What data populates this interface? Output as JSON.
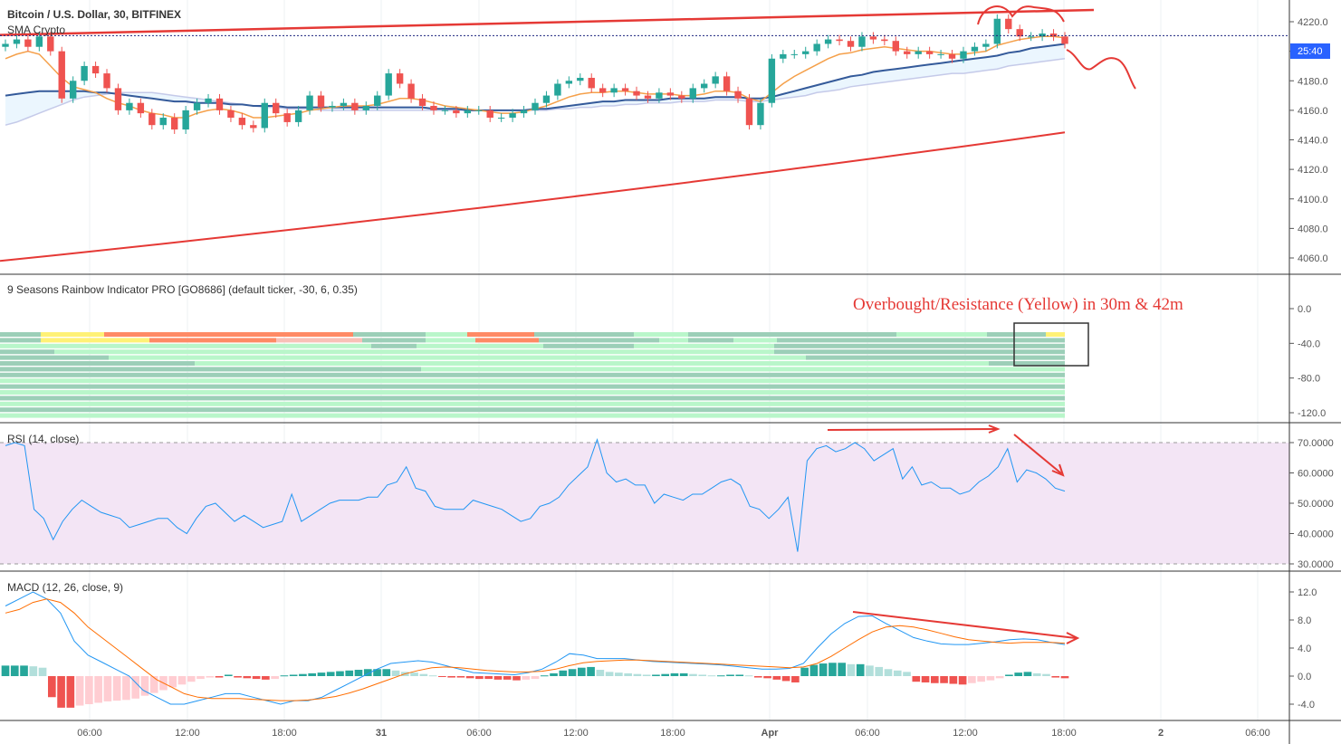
{
  "main_panel": {
    "title": "Bitcoin / U.S. Dollar, 30, BITFINEX",
    "indicator": "SMA Crypto",
    "current_price_label": "25:40",
    "y_ticks": [
      "4220.0",
      "4200.0",
      "4180.0",
      "4160.0",
      "4140.0",
      "4120.0",
      "4100.0",
      "4080.0",
      "4060.0"
    ]
  },
  "rainbow_panel": {
    "title": "9 Seasons Rainbow Indicator PRO [GO8686] (default ticker, -30, 6, 0.35)",
    "annotation": "Overbought/Resistance (Yellow) in 30m & 42m",
    "y_ticks": [
      "0.0",
      "-40.0",
      "-80.0",
      "-120.0"
    ]
  },
  "rsi_panel": {
    "title": "RSI (14, close)",
    "y_ticks": [
      "70.0000",
      "60.0000",
      "50.0000",
      "40.0000",
      "30.0000"
    ]
  },
  "macd_panel": {
    "title": "MACD (12, 26, close, 9)",
    "y_ticks": [
      "12.0",
      "8.0",
      "4.0",
      "0.0",
      "-4.0"
    ]
  },
  "time_axis": {
    "labels": [
      "06:00",
      "12:00",
      "18:00",
      "31",
      "06:00",
      "12:00",
      "18:00",
      "Apr",
      "06:00",
      "12:00",
      "18:00",
      "2",
      "06:00"
    ]
  },
  "colors": {
    "up": "#26a69a",
    "down": "#ef5350",
    "annotation": "#e53935",
    "rsi_band": "#f3e5f5"
  },
  "chart_data": [
    {
      "type": "candlestick",
      "title": "Bitcoin / U.S. Dollar, 30, BITFINEX",
      "ylim": [
        4050,
        4232
      ],
      "closes": [
        4205,
        4208,
        4203,
        4210,
        4200,
        4168,
        4180,
        4190,
        4185,
        4175,
        4160,
        4165,
        4158,
        4150,
        4155,
        4147,
        4160,
        4165,
        4168,
        4160,
        4155,
        4150,
        4148,
        4165,
        4158,
        4152,
        4160,
        4170,
        4162,
        4163,
        4165,
        4160,
        4163,
        4170,
        4185,
        4178,
        4168,
        4163,
        4160,
        4160,
        4158,
        4160,
        4160,
        4155,
        4155,
        4158,
        4160,
        4165,
        4170,
        4178,
        4180,
        4182,
        4175,
        4172,
        4175,
        4173,
        4170,
        4168,
        4172,
        4170,
        4168,
        4175,
        4178,
        4183,
        4173,
        4168,
        4150,
        4165,
        4195,
        4198,
        4198,
        4200,
        4205,
        4208,
        4207,
        4203,
        4210,
        4208,
        4207,
        4200,
        4198,
        4200,
        4198,
        4198,
        4195,
        4200,
        4203,
        4205,
        4222,
        4215,
        4210,
        4210,
        4212,
        4210,
        4205
      ],
      "sma_fast": [
        4195,
        4198,
        4200,
        4198,
        4190,
        4182,
        4176,
        4174,
        4172,
        4168,
        4165,
        4163,
        4160,
        4158,
        4157,
        4155,
        4155,
        4158,
        4160,
        4161,
        4160,
        4158,
        4155,
        4155,
        4156,
        4157,
        4158,
        4160,
        4161,
        4162,
        4163,
        4163,
        4163,
        4164,
        4166,
        4168,
        4168,
        4167,
        4165,
        4163,
        4162,
        4161,
        4160,
        4159,
        4158,
        4158,
        4159,
        4161,
        4163,
        4166,
        4169,
        4171,
        4172,
        4172,
        4173,
        4173,
        4172,
        4171,
        4171,
        4171,
        4170,
        4170,
        4171,
        4173,
        4173,
        4172,
        4168,
        4166,
        4172,
        4178,
        4183,
        4187,
        4191,
        4195,
        4198,
        4199,
        4201,
        4202,
        4203,
        4202,
        4201,
        4200,
        4200,
        4199,
        4198,
        4198,
        4199,
        4200,
        4204,
        4206,
        4208,
        4209,
        4210,
        4210,
        4209
      ],
      "sma_mid": [
        4170,
        4171,
        4172,
        4173,
        4173,
        4173,
        4173,
        4173,
        4172,
        4172,
        4171,
        4170,
        4169,
        4168,
        4167,
        4166,
        4166,
        4165,
        4165,
        4165,
        4164,
        4164,
        4163,
        4163,
        4163,
        4162,
        4162,
        4162,
        4162,
        4162,
        4162,
        4162,
        4162,
        4162,
        4162,
        4162,
        4162,
        4162,
        4161,
        4161,
        4161,
        4160,
        4160,
        4160,
        4160,
        4160,
        4160,
        4161,
        4161,
        4162,
        4163,
        4164,
        4165,
        4166,
        4166,
        4167,
        4167,
        4167,
        4167,
        4168,
        4168,
        4168,
        4168,
        4169,
        4169,
        4169,
        4168,
        4168,
        4169,
        4171,
        4173,
        4175,
        4177,
        4179,
        4181,
        4183,
        4184,
        4186,
        4187,
        4188,
        4189,
        4190,
        4191,
        4192,
        4193,
        4194,
        4195,
        4196,
        4197,
        4199,
        4200,
        4202,
        4203,
        4204,
        4205
      ],
      "sma_slow": [
        4150,
        4152,
        4155,
        4158,
        4161,
        4164,
        4167,
        4169,
        4170,
        4171,
        4172,
        4172,
        4172,
        4172,
        4171,
        4170,
        4169,
        4168,
        4167,
        4166,
        4165,
        4164,
        4163,
        4162,
        4162,
        4161,
        4161,
        4161,
        4160,
        4160,
        4160,
        4160,
        4160,
        4160,
        4160,
        4160,
        4160,
        4160,
        4160,
        4160,
        4160,
        4160,
        4160,
        4160,
        4160,
        4160,
        4160,
        4160,
        4160,
        4161,
        4161,
        4162,
        4162,
        4163,
        4163,
        4164,
        4164,
        4165,
        4165,
        4165,
        4166,
        4166,
        4166,
        4167,
        4167,
        4167,
        4166,
        4166,
        4167,
        4168,
        4169,
        4170,
        4172,
        4173,
        4174,
        4176,
        4177,
        4178,
        4179,
        4180,
        4181,
        4182,
        4183,
        4184,
        4185,
        4185,
        4186,
        4187,
        4188,
        4190,
        4191,
        4192,
        4193,
        4194,
        4195
      ],
      "channel_upper": [
        4211,
        4228
      ],
      "channel_lower": [
        4058,
        4145
      ],
      "current_price": 4210
    },
    {
      "type": "heatmap",
      "title": "9 Seasons Rainbow Indicator PRO [GO8686] (default ticker, -30, 6, 0.35)",
      "ylim": [
        -130,
        0
      ],
      "rows": 15,
      "overbought_note": "Overbought/Resistance (Yellow) in 30m & 42m"
    },
    {
      "type": "line",
      "title": "RSI (14, close)",
      "ylim": [
        29,
        72
      ],
      "bands": [
        30,
        70
      ],
      "values": [
        69,
        70,
        69,
        48,
        45,
        38,
        44,
        48,
        51,
        49,
        47,
        46,
        45,
        42,
        43,
        44,
        45,
        45,
        42,
        40,
        45,
        49,
        50,
        47,
        44,
        46,
        44,
        42,
        43,
        44,
        53,
        44,
        46,
        48,
        50,
        51,
        51,
        51,
        52,
        52,
        56,
        57,
        62,
        55,
        54,
        49,
        48,
        48,
        48,
        51,
        50,
        49,
        48,
        46,
        44,
        45,
        49,
        50,
        52,
        56,
        59,
        62,
        71,
        60,
        57,
        58,
        56,
        56,
        50,
        53,
        52,
        51,
        53,
        53,
        55,
        57,
        58,
        56,
        49,
        48,
        45,
        48,
        52,
        34,
        64,
        68,
        69,
        67,
        68,
        70,
        68,
        64,
        66,
        68,
        58,
        62,
        56,
        57,
        55,
        55,
        53,
        54,
        57,
        59,
        62,
        68,
        57,
        61,
        60,
        58,
        55,
        54
      ]
    },
    {
      "type": "bar",
      "title": "MACD (12, 26, close, 9)",
      "ylim": [
        -6.5,
        13.5
      ],
      "histogram": [
        1.5,
        1.5,
        1.5,
        1.4,
        1.2,
        -3.0,
        -4.5,
        -4.5,
        -4.2,
        -4.0,
        -3.8,
        -3.6,
        -3.5,
        -3.4,
        -3.2,
        -2.8,
        -2.4,
        -2.0,
        -1.6,
        -1.2,
        -0.8,
        -0.4,
        -0.2,
        -0.2,
        0.2,
        -0.2,
        -0.3,
        -0.4,
        -0.5,
        -0.4,
        0.1,
        0.2,
        0.3,
        0.4,
        0.5,
        0.6,
        0.7,
        0.8,
        0.9,
        1.0,
        1.0,
        1.0,
        0.8,
        0.6,
        0.5,
        0.3,
        0.1,
        -0.1,
        -0.2,
        -0.2,
        -0.3,
        -0.4,
        -0.4,
        -0.5,
        -0.5,
        -0.6,
        -0.5,
        -0.4,
        0.1,
        0.4,
        0.8,
        1.0,
        1.2,
        1.3,
        0.9,
        0.6,
        0.5,
        0.4,
        0.3,
        0.2,
        0.2,
        0.3,
        0.4,
        0.4,
        0.3,
        0.2,
        0.1,
        0.1,
        0.2,
        0.2,
        0.1,
        -0.2,
        -0.3,
        -0.5,
        -0.7,
        -0.9,
        1.2,
        1.6,
        1.8,
        1.9,
        1.9,
        1.7,
        1.7,
        1.5,
        1.3,
        1.0,
        0.8,
        0.6,
        -0.8,
        -0.9,
        -1.0,
        -1.0,
        -1.1,
        -1.2,
        -1.0,
        -0.8,
        -0.6,
        -0.3,
        0.2,
        0.5,
        0.6,
        0.4,
        0.3,
        -0.2,
        -0.3
      ],
      "macd": [
        10,
        11,
        12,
        11,
        9,
        5,
        3,
        2,
        1,
        0,
        -2,
        -3,
        -4,
        -4,
        -3.5,
        -3,
        -2.5,
        -2.5,
        -3,
        -3.5,
        -4,
        -3.5,
        -3.5,
        -3,
        -2,
        -1,
        0,
        1,
        1.8,
        2,
        2.2,
        2,
        1.5,
        1,
        0.5,
        0.4,
        0.3,
        0.2,
        0.5,
        1,
        2,
        3.2,
        3,
        2.5,
        2.5,
        2.5,
        2.3,
        2.1,
        2,
        1.9,
        1.8,
        1.7,
        1.6,
        1.4,
        1.2,
        1,
        1,
        1.1,
        1.8,
        4,
        6,
        7.5,
        8.5,
        8.6,
        7.5,
        6.5,
        5.5,
        5,
        4.6,
        4.5,
        4.5,
        4.7,
        4.9,
        5.2,
        5.3,
        5.2,
        4.8,
        4.5
      ],
      "signal": [
        9,
        9.5,
        10.5,
        11,
        10.5,
        9,
        7,
        5.5,
        4,
        2.5,
        1,
        -0.5,
        -1.5,
        -2.5,
        -3,
        -3.2,
        -3.2,
        -3.2,
        -3.3,
        -3.4,
        -3.5,
        -3.5,
        -3.4,
        -3.2,
        -2.9,
        -2.4,
        -1.8,
        -1.1,
        -0.4,
        0.3,
        0.8,
        1.2,
        1.3,
        1.2,
        1,
        0.8,
        0.7,
        0.6,
        0.6,
        0.7,
        1,
        1.5,
        1.9,
        2.1,
        2.2,
        2.3,
        2.3,
        2.2,
        2.1,
        2,
        1.9,
        1.8,
        1.7,
        1.6,
        1.5,
        1.4,
        1.3,
        1.2,
        1.3,
        1.8,
        2.8,
        4,
        5.2,
        6.3,
        7,
        7.2,
        7,
        6.6,
        6.1,
        5.6,
        5.2,
        5,
        4.8,
        4.7,
        4.8,
        4.8,
        4.8,
        4.7
      ]
    }
  ]
}
